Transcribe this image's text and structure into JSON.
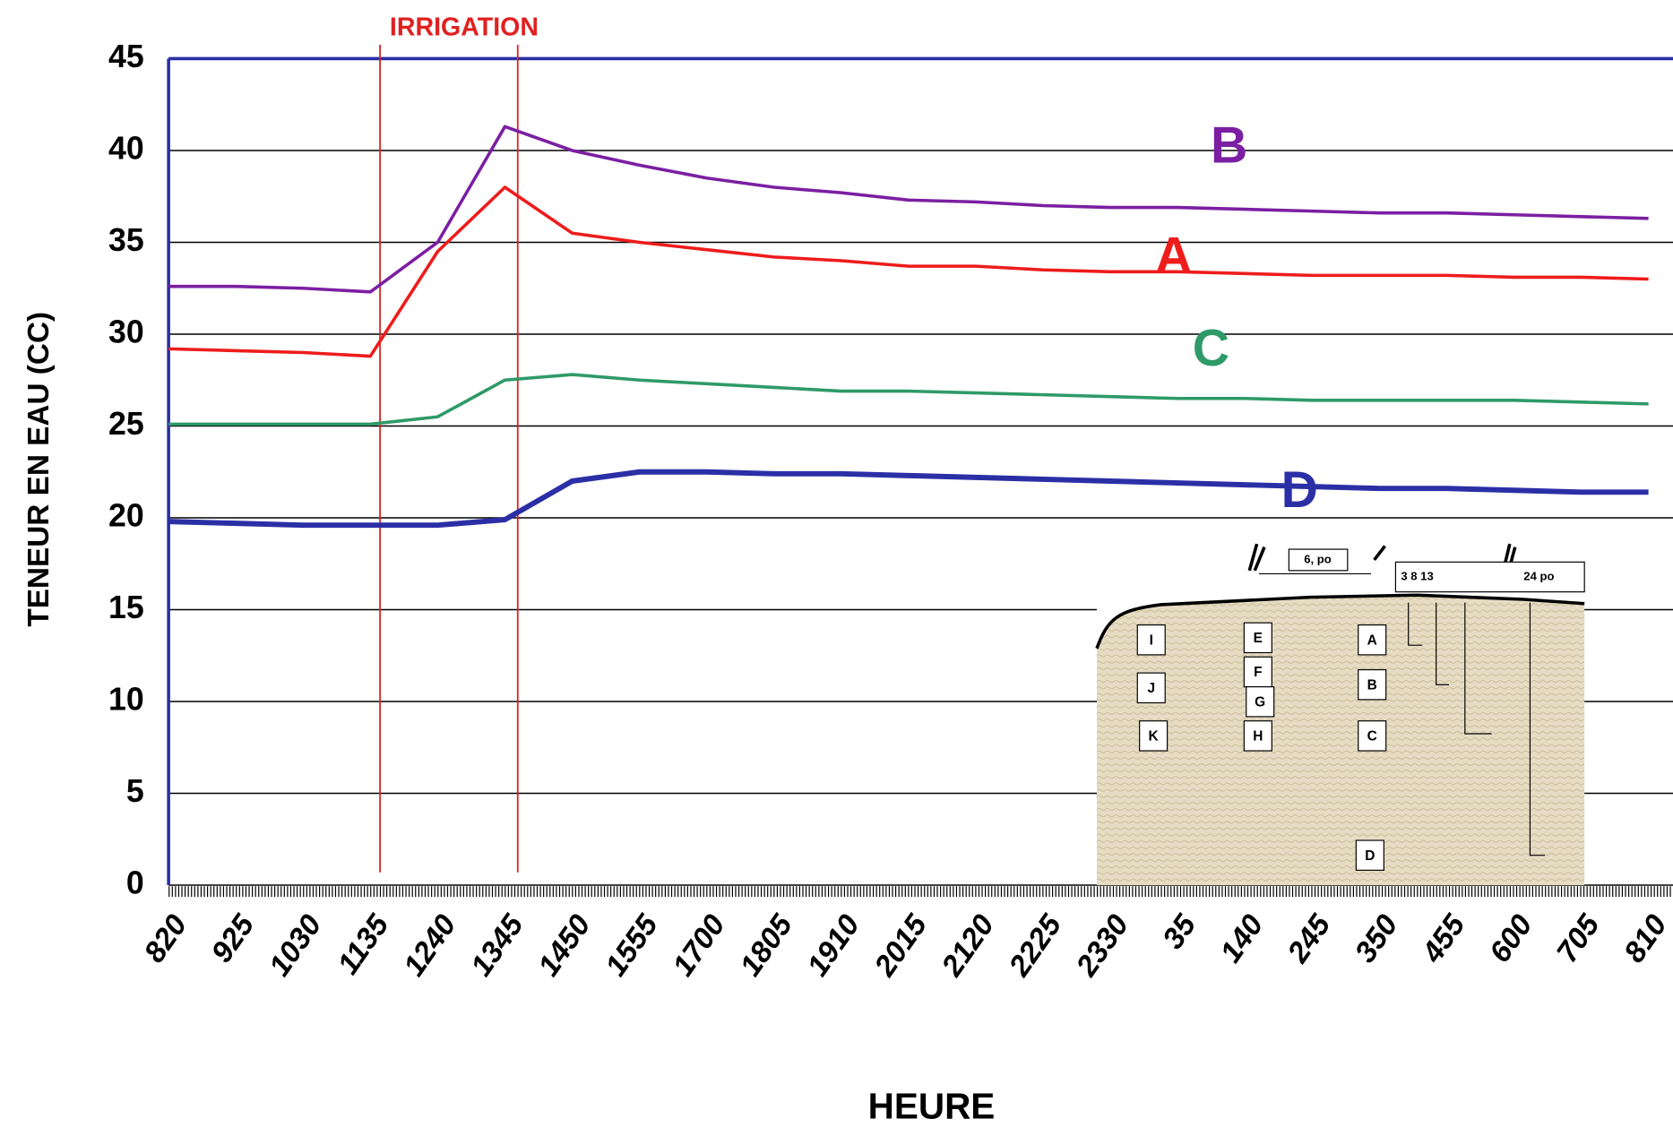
{
  "chart_data": {
    "type": "line",
    "y_label": "TENEUR EN EAU (CC)",
    "x_label": "HEURE",
    "categories": [
      "820",
      "925",
      "1030",
      "1135",
      "1240",
      "1345",
      "1450",
      "1555",
      "1700",
      "1805",
      "1910",
      "2015",
      "2120",
      "2225",
      "2330",
      "35",
      "140",
      "245",
      "350",
      "455",
      "600",
      "705",
      "810"
    ],
    "series": [
      {
        "name": "A",
        "color": "#ee1c1c",
        "values": [
          29.2,
          29.1,
          29.0,
          28.8,
          34.5,
          38.0,
          35.5,
          35.0,
          34.6,
          34.2,
          34.0,
          33.7,
          33.7,
          33.5,
          33.4,
          33.4,
          33.3,
          33.2,
          33.2,
          33.2,
          33.1,
          33.1,
          33.0
        ]
      },
      {
        "name": "B",
        "color": "#7b1fa2",
        "values": [
          32.6,
          32.6,
          32.5,
          32.3,
          35.0,
          41.3,
          40.0,
          39.2,
          38.5,
          38.0,
          37.7,
          37.3,
          37.2,
          37.0,
          36.9,
          36.9,
          36.8,
          36.7,
          36.6,
          36.6,
          36.5,
          36.4,
          36.3
        ]
      },
      {
        "name": "C",
        "color": "#2e9a68",
        "values": [
          25.1,
          25.1,
          25.1,
          25.1,
          25.5,
          27.5,
          27.8,
          27.5,
          27.3,
          27.1,
          26.9,
          26.9,
          26.8,
          26.7,
          26.6,
          26.5,
          26.5,
          26.4,
          26.4,
          26.4,
          26.4,
          26.3,
          26.2
        ]
      },
      {
        "name": "D",
        "color": "#2b2fa6",
        "values": [
          19.8,
          19.7,
          19.6,
          19.6,
          19.6,
          19.9,
          22.0,
          22.5,
          22.5,
          22.4,
          22.4,
          22.3,
          22.2,
          22.1,
          22.0,
          21.9,
          21.8,
          21.7,
          21.6,
          21.6,
          21.5,
          21.4,
          21.4
        ]
      }
    ],
    "ylim": [
      0,
      45
    ],
    "yticks": [
      0,
      5,
      10,
      15,
      20,
      25,
      30,
      35,
      40,
      45
    ],
    "grid": true,
    "irrigation": {
      "label": "IRRIGATION",
      "start": "1135",
      "end": "1345",
      "color": "#e02020"
    }
  },
  "inset": {
    "spacing_label": "6, po",
    "depths_label": "3   8   13",
    "depth_label": "24   po",
    "boxes": [
      "I",
      "J",
      "K",
      "E",
      "F",
      "G",
      "H",
      "A",
      "B",
      "C",
      "D"
    ]
  }
}
